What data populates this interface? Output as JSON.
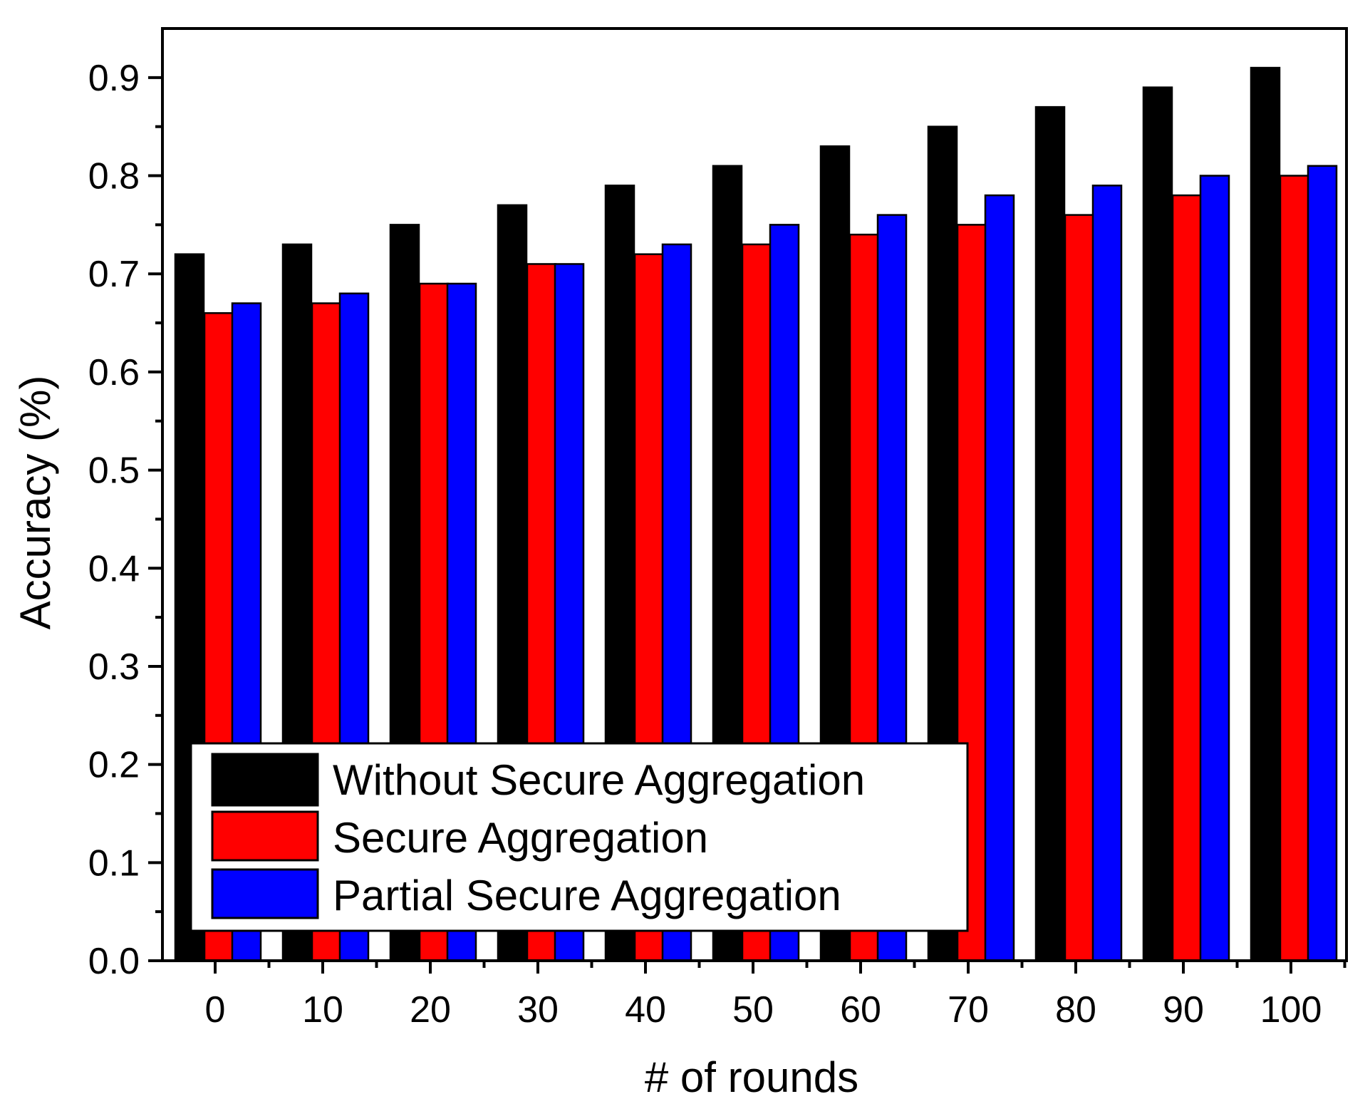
{
  "chart_data": {
    "type": "bar",
    "title": "",
    "xlabel": "# of rounds",
    "ylabel": "Accuracy (%)",
    "categories": [
      "0",
      "10",
      "20",
      "30",
      "40",
      "50",
      "60",
      "70",
      "80",
      "90",
      "100"
    ],
    "series": [
      {
        "name": "Without Secure Aggregation",
        "color": "#000000",
        "values": [
          0.72,
          0.73,
          0.75,
          0.77,
          0.79,
          0.81,
          0.83,
          0.85,
          0.87,
          0.89,
          0.91
        ]
      },
      {
        "name": "Secure Aggregation",
        "color": "#ff0000",
        "values": [
          0.66,
          0.67,
          0.69,
          0.71,
          0.72,
          0.73,
          0.74,
          0.75,
          0.76,
          0.78,
          0.8
        ]
      },
      {
        "name": "Partial Secure Aggregation",
        "color": "#0000ff",
        "values": [
          0.67,
          0.68,
          0.69,
          0.71,
          0.73,
          0.75,
          0.76,
          0.78,
          0.79,
          0.8,
          0.81
        ]
      }
    ],
    "ylim": [
      0,
      0.95
    ],
    "yticks": [
      0.0,
      0.1,
      0.2,
      0.3,
      0.4,
      0.5,
      0.6,
      0.7,
      0.8,
      0.9
    ],
    "ytick_labels": [
      "0.0",
      "0.1",
      "0.2",
      "0.3",
      "0.4",
      "0.5",
      "0.6",
      "0.7",
      "0.8",
      "0.9"
    ],
    "grid": false,
    "legend_position": "bottom-left"
  }
}
